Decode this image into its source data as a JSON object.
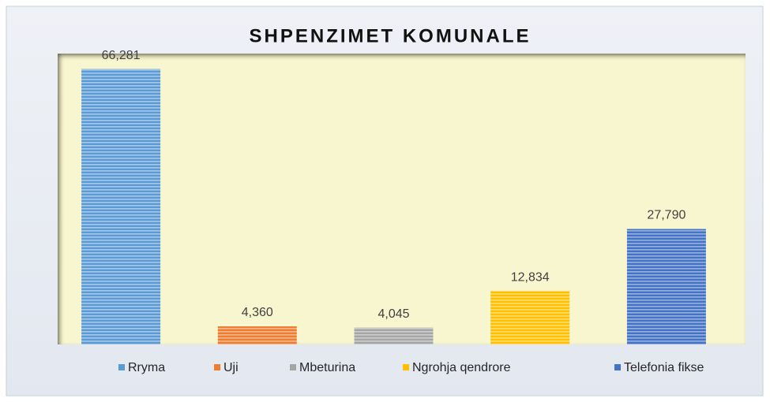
{
  "chart_data": {
    "type": "bar",
    "title": "SHPENZIMET KOMUNALE",
    "categories": [
      "Rryma",
      "Uji",
      "Mbeturina",
      "Ngrohja qendrore",
      "Telefonia fikse"
    ],
    "values": [
      66281,
      4360,
      4045,
      12834,
      27790
    ],
    "value_labels": [
      "66,281",
      "4,360",
      "4,045",
      "12,834",
      "27,790"
    ],
    "colors": [
      "#5b9bd5",
      "#ed7d31",
      "#a5a5a5",
      "#ffc000",
      "#4472c4"
    ],
    "ylim": [
      0,
      70000
    ],
    "legend": "bottom"
  }
}
